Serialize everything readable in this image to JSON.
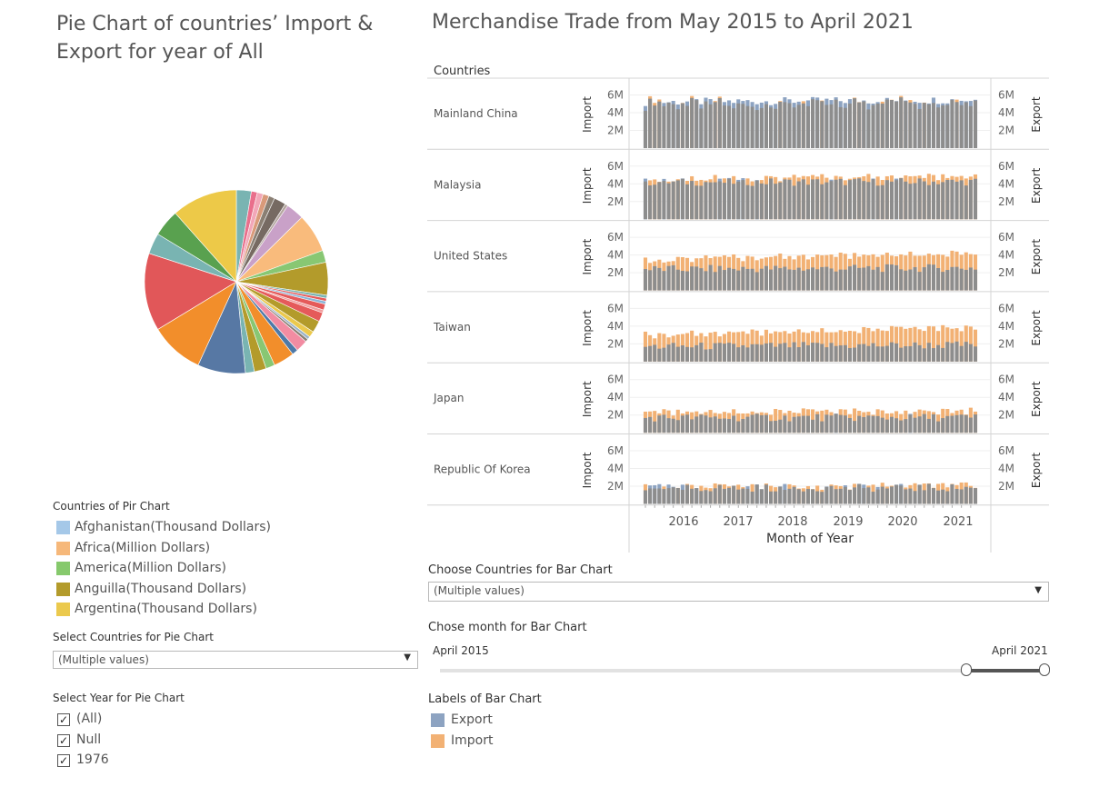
{
  "pie_title": "Pie Chart of countries’ Import & Export for year of All",
  "bar_title": "Merchandise Trade from May 2015 to April 2021",
  "pie_legend": {
    "title": "Countries of Pir Chart",
    "items": [
      {
        "label": "Afghanistan(Thousand Dollars)",
        "color": "#a5c8e8"
      },
      {
        "label": "Africa(Million Dollars)",
        "color": "#f6b87a"
      },
      {
        "label": "America(Million Dollars)",
        "color": "#86c96c"
      },
      {
        "label": "Anguilla(Thousand Dollars)",
        "color": "#b39b2b"
      },
      {
        "label": "Argentina(Thousand Dollars)",
        "color": "#ebc94d"
      }
    ]
  },
  "pie_countries_filter": {
    "label": "Select Countries for Pie Chart",
    "value": "(Multiple values)"
  },
  "pie_year_filter": {
    "label": "Select Year for Pie Chart",
    "options": [
      {
        "label": "(All)",
        "checked": true
      },
      {
        "label": "Null",
        "checked": true
      },
      {
        "label": "1976",
        "checked": true
      }
    ]
  },
  "bar_countries_filter": {
    "label": "Choose Countries for Bar Chart",
    "value": "(Multiple values)"
  },
  "month_slider": {
    "label": "Chose month for Bar Chart",
    "start": "April 2015",
    "end": "April 2021",
    "selected_from_fraction": 0.87,
    "selected_to_fraction": 1.0
  },
  "bar_legend": {
    "title": "Labels of Bar Chart",
    "items": [
      {
        "label": "Export",
        "color": "#8da3c1"
      },
      {
        "label": "Import",
        "color": "#f2b174"
      }
    ]
  },
  "chart_data": [
    {
      "type": "pie",
      "title": "Pie Chart of countries’ Import & Export for year of All",
      "slices": [
        {
          "color": "#79b4b2",
          "value": 2.5
        },
        {
          "color": "#e96f8c",
          "value": 1.0
        },
        {
          "color": "#f2a7b8",
          "value": 1.0
        },
        {
          "color": "#d99a7a",
          "value": 1.0
        },
        {
          "color": "#8a7f73",
          "value": 1.0
        },
        {
          "color": "#766a62",
          "value": 2.0
        },
        {
          "color": "#b5a7a0",
          "value": 0.5
        },
        {
          "color": "#c9a1c8",
          "value": 3.0
        },
        {
          "color": "#f9bb7c",
          "value": 6.5
        },
        {
          "color": "#88c773",
          "value": 2.0
        },
        {
          "color": "#b39b2b",
          "value": 5.5
        },
        {
          "color": "#79b4b2",
          "value": 0.5
        },
        {
          "color": "#e55a5a",
          "value": 0.5
        },
        {
          "color": "#8ab4d8",
          "value": 0.5
        },
        {
          "color": "#e55a5a",
          "value": 1.0
        },
        {
          "color": "#f09e9e",
          "value": 0.5
        },
        {
          "color": "#e55a5a",
          "value": 1.5
        },
        {
          "color": "#b39b2b",
          "value": 2.0
        },
        {
          "color": "#ebc94d",
          "value": 1.0
        },
        {
          "color": "#9ab3c9",
          "value": 0.5
        },
        {
          "color": "#8a7f73",
          "value": 0.5
        },
        {
          "color": "#f28ca2",
          "value": 2.0
        },
        {
          "color": "#4e79a7",
          "value": 1.0
        },
        {
          "color": "#f28e2b",
          "value": 3.5
        },
        {
          "color": "#88c773",
          "value": 1.5
        },
        {
          "color": "#b39b2b",
          "value": 2.0
        },
        {
          "color": "#79b4b2",
          "value": 1.5
        },
        {
          "color": "#5778a4",
          "value": 8.0
        },
        {
          "color": "#f28e2b",
          "value": 9.0
        },
        {
          "color": "#e15759",
          "value": 13.0
        },
        {
          "color": "#79b4b2",
          "value": 3.5
        },
        {
          "color": "#59a14f",
          "value": 4.5
        },
        {
          "color": "#edc948",
          "value": 11.0
        }
      ]
    },
    {
      "type": "bar",
      "title": "Merchandise Trade from May 2015 to April 2021",
      "stacked": true,
      "xlabel": "Month of Year",
      "x_ticks": [
        "2016",
        "2017",
        "2018",
        "2019",
        "2020",
        "2021"
      ],
      "left_axis_label": "Import",
      "right_axis_label": "Export",
      "row_header": "Countries",
      "y_ticks": [
        "2M",
        "4M",
        "6M"
      ],
      "ylim": [
        0,
        8000000
      ],
      "start_month": "2015-05",
      "end_month": "2021-04",
      "rows": [
        {
          "country": "Mainland China",
          "export_level": 5.2,
          "import_level": 5.6,
          "dominant": "export",
          "trend": 0.25
        },
        {
          "country": "Malaysia",
          "export_level": 4.2,
          "import_level": 4.6,
          "dominant": "mixed",
          "trend": 0.15
        },
        {
          "country": "United States",
          "export_level": 2.4,
          "import_level": 3.5,
          "dominant": "import",
          "trend": 0.5
        },
        {
          "country": "Taiwan",
          "export_level": 1.7,
          "import_level": 3.0,
          "dominant": "import",
          "trend": 0.6
        },
        {
          "country": "Japan",
          "export_level": 1.7,
          "import_level": 2.3,
          "dominant": "import",
          "trend": 0.1
        },
        {
          "country": "Republic Of Korea",
          "export_level": 1.8,
          "import_level": 1.9,
          "dominant": "mixed",
          "trend": 0.1
        }
      ]
    }
  ]
}
